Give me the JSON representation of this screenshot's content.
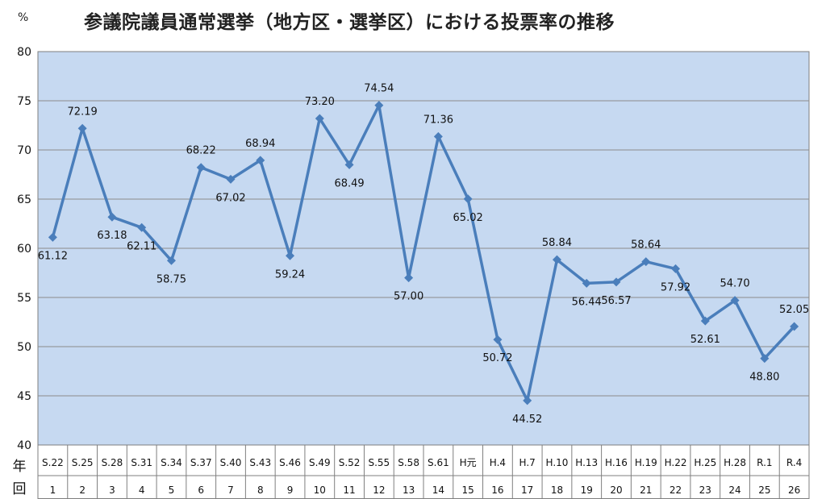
{
  "chart_data": {
    "type": "line",
    "title": "参議院議員通常選挙（地方区・選挙区）における投票率の推移",
    "unit": "%",
    "ylim": [
      40,
      80
    ],
    "yticks": [
      40,
      45,
      50,
      55,
      60,
      65,
      70,
      75,
      80
    ],
    "row_labels": {
      "era": "年",
      "count": "回"
    },
    "categories": [
      "S.22",
      "S.25",
      "S.28",
      "S.31",
      "S.34",
      "S.37",
      "S.40",
      "S.43",
      "S.46",
      "S.49",
      "S.52",
      "S.55",
      "S.58",
      "S.61",
      "H元",
      "H.4",
      "H.7",
      "H.10",
      "H.13",
      "H.16",
      "H.19",
      "H.22",
      "H.25",
      "H.28",
      "R.1",
      "R.4"
    ],
    "rounds": [
      "1",
      "2",
      "3",
      "4",
      "5",
      "6",
      "7",
      "8",
      "9",
      "10",
      "11",
      "12",
      "13",
      "14",
      "15",
      "16",
      "17",
      "18",
      "19",
      "20",
      "21",
      "22",
      "23",
      "24",
      "25",
      "26"
    ],
    "values": [
      61.12,
      72.19,
      63.18,
      62.11,
      58.75,
      68.22,
      67.02,
      68.94,
      59.24,
      73.2,
      68.49,
      74.54,
      57.0,
      71.36,
      65.02,
      50.72,
      44.52,
      58.84,
      56.44,
      56.57,
      58.64,
      57.92,
      52.61,
      54.7,
      48.8,
      52.05
    ],
    "data_labels": [
      "61.12",
      "72.19",
      "63.18",
      "62.11",
      "58.75",
      "68.22",
      "67.02",
      "68.94",
      "59.24",
      "73.20",
      "68.49",
      "74.54",
      "57.00",
      "71.36",
      "65.02",
      "50.72",
      "44.52",
      "58.84",
      "56.44",
      "56.57",
      "58.64",
      "57.92",
      "52.61",
      "54.70",
      "48.80",
      "52.05"
    ],
    "grid": true,
    "colors": {
      "plot_bg": "#c6d9f1",
      "line": "#4a7ebb",
      "grid": "#8c8c8c"
    }
  }
}
